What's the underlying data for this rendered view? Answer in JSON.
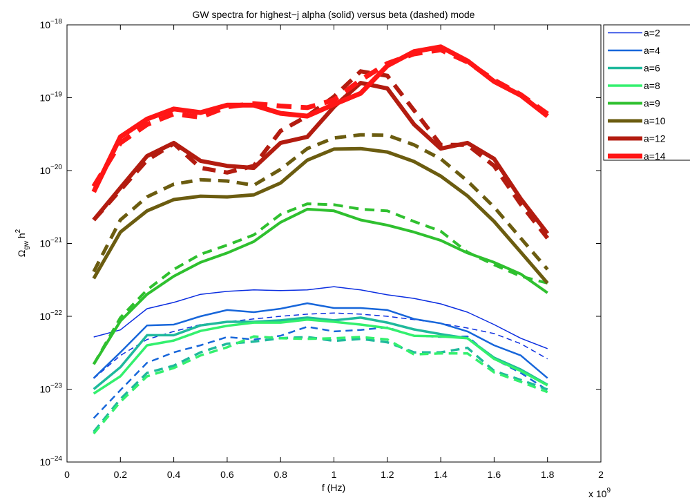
{
  "chart_data": {
    "type": "line",
    "title": "GW spectra for highest−j alpha (solid) versus beta (dashed) mode",
    "xlabel": "f (Hz)",
    "ylabel": "Ω_gw h^2",
    "x_multiplier": "x 10^9",
    "yscale": "log",
    "grid": false,
    "legend": "northeastoutside",
    "x": [
      0.1,
      0.2,
      0.3,
      0.4,
      0.5,
      0.6,
      0.7,
      0.8,
      0.9,
      1.0,
      1.1,
      1.2,
      1.3,
      1.4,
      1.5,
      1.6,
      1.7,
      1.8
    ],
    "xlim": [
      0,
      2
    ],
    "xticks": [
      0,
      0.2,
      0.4,
      0.6,
      0.8,
      1,
      1.2,
      1.4,
      1.6,
      1.8,
      2
    ],
    "ylim": [
      1e-24,
      1e-18
    ],
    "yticks": [
      {
        "value": 1e-24,
        "label": "10^−24"
      },
      {
        "value": 1e-23,
        "label": "10^−23"
      },
      {
        "value": 1e-22,
        "label": "10^−22"
      },
      {
        "value": 1e-21,
        "label": "10^−21"
      },
      {
        "value": 1e-20,
        "label": "10^−20"
      },
      {
        "value": 1e-19,
        "label": "10^−19"
      },
      {
        "value": 1e-18,
        "label": "10^−18"
      }
    ],
    "series": [
      {
        "name": "a=2",
        "color": "#0b2ee0",
        "values": [
          5.2e-23,
          6.5e-23,
          1.27e-22,
          1.55e-22,
          2e-22,
          2.2e-22,
          2.3e-22,
          2.25e-22,
          2.3e-22,
          2.55e-22,
          2.3e-22,
          1.97e-22,
          1.76e-22,
          1.48e-22,
          1.14e-22,
          7.7e-23,
          5e-23,
          3.6e-23
        ],
        "dashed_values": [
          1.4e-23,
          2.9e-23,
          4.8e-23,
          6.2e-23,
          7.7e-23,
          8.4e-23,
          9.2e-23,
          1e-22,
          1.07e-22,
          1.11e-22,
          1.07e-22,
          1e-22,
          9e-23,
          8e-23,
          6.9e-23,
          5.8e-23,
          4.2e-23,
          2.6e-23
        ]
      },
      {
        "name": "a=4",
        "color": "#1766da",
        "values": [
          1.42e-23,
          3.2e-23,
          7.5e-23,
          7.7e-23,
          1e-22,
          1.22e-22,
          1.14e-22,
          1.27e-22,
          1.51e-22,
          1.3e-22,
          1.3e-22,
          1.22e-22,
          9.2e-23,
          8e-23,
          6.2e-23,
          4e-23,
          2.9e-23,
          1.42e-23
        ],
        "dashed_values": [
          4e-24,
          9.7e-24,
          2.3e-23,
          3.2e-23,
          4e-23,
          5.2e-23,
          4.8e-23,
          5.4e-23,
          7.2e-23,
          6.2e-23,
          6.5e-23,
          7.05e-23,
          5.4e-23,
          5.2e-23,
          5.3e-23,
          2.6e-23,
          1.67e-23,
          9.7e-24
        ]
      },
      {
        "name": "a=6",
        "color": "#1fb99c",
        "values": [
          1e-23,
          2e-23,
          5.5e-23,
          5.5e-23,
          7.5e-23,
          8.4e-23,
          8.4e-23,
          8.8e-23,
          9.6e-23,
          8.8e-23,
          9.6e-23,
          8.2e-23,
          6.6e-23,
          5.7e-23,
          5e-23,
          2.7e-23,
          1.86e-23,
          1.15e-23
        ],
        "dashed_values": [
          2.6e-24,
          7.3e-24,
          1.67e-23,
          2.1e-23,
          3.2e-23,
          4.2e-23,
          4.5e-23,
          5e-23,
          5.2e-23,
          4.6e-23,
          4.9e-23,
          4.4e-23,
          3.2e-23,
          3.2e-23,
          3.7e-23,
          1.78e-23,
          1.34e-23,
          9.9e-24
        ]
      },
      {
        "name": "a=8",
        "color": "#33f06e",
        "values": [
          8.7e-24,
          1.5e-23,
          4e-23,
          4.65e-23,
          6.3e-23,
          7.4e-23,
          8.2e-23,
          8.2e-23,
          9e-23,
          8.4e-23,
          7.7e-23,
          6.9e-23,
          5.4e-23,
          5.3e-23,
          5e-23,
          2.6e-23,
          1.78e-23,
          1.13e-23
        ],
        "dashed_values": [
          2.45e-24,
          6.7e-24,
          1.5e-23,
          1.95e-23,
          2.9e-23,
          3.75e-23,
          5.3e-23,
          5e-23,
          4.9e-23,
          5e-23,
          5.2e-23,
          4.8e-23,
          3e-23,
          3.1e-23,
          3.1e-23,
          1.7e-23,
          1.26e-23,
          9.1e-24
        ]
      },
      {
        "name": "a=9",
        "color": "#2fc02f",
        "values": [
          2.2e-23,
          8.6e-23,
          2e-22,
          3.55e-22,
          5.5e-22,
          7.4e-22,
          1.06e-21,
          1.95e-21,
          2.95e-21,
          2.8e-21,
          2.1e-21,
          1.78e-21,
          1.43e-21,
          1.1e-21,
          7.4e-22,
          5.5e-22,
          3.8e-22,
          2.1e-22
        ],
        "dashed_values": [
          2.2e-23,
          9.6e-23,
          2.3e-22,
          4.4e-22,
          7.1e-22,
          9.5e-22,
          1.31e-21,
          2.5e-21,
          3.5e-21,
          3.4e-21,
          2.95e-21,
          2.8e-21,
          2e-21,
          1.47e-21,
          7.6e-22,
          5.1e-22,
          3.55e-22,
          2.85e-22
        ]
      },
      {
        "name": "a=10",
        "color": "#6b5c10",
        "values": [
          3.3e-22,
          1.43e-21,
          2.8e-21,
          4e-21,
          4.45e-21,
          4.35e-21,
          4.65e-21,
          6.75e-21,
          1.39e-20,
          1.97e-20,
          2e-20,
          1.8e-20,
          1.33e-20,
          8.4e-21,
          4.5e-21,
          2e-21,
          7.6e-22,
          2.85e-22
        ],
        "dashed_values": [
          4.1e-22,
          2.1e-21,
          4.35e-21,
          6.5e-21,
          7.5e-21,
          7.2e-21,
          6.3e-21,
          1.04e-20,
          2e-20,
          2.8e-20,
          3.1e-20,
          3.05e-20,
          2.25e-20,
          1.45e-20,
          7.2e-21,
          3.15e-21,
          1.18e-21,
          4.4e-22
        ]
      },
      {
        "name": "a=12",
        "color": "#b31c10",
        "values": [
          2.1e-21,
          5.8e-21,
          1.58e-20,
          2.4e-20,
          1.36e-20,
          1.16e-20,
          1.09e-20,
          2.4e-20,
          2.9e-20,
          7.5e-20,
          1.6e-19,
          1.34e-19,
          4.3e-20,
          2e-20,
          2.4e-20,
          1.45e-20,
          4.1e-21,
          1.37e-21
        ],
        "dashed_values": [
          2.1e-21,
          5.4e-21,
          1.39e-20,
          2.35e-20,
          1.09e-20,
          9.4e-21,
          1.16e-20,
          3.5e-20,
          5.6e-20,
          1.03e-19,
          2.3e-19,
          2e-19,
          6.7e-20,
          2.25e-20,
          2.25e-20,
          1.16e-20,
          3.45e-21,
          1.18e-21
        ]
      },
      {
        "name": "a=14",
        "color": "#ff1616",
        "values": [
          5.1e-21,
          2.9e-20,
          5.1e-20,
          7e-20,
          6.25e-20,
          7.9e-20,
          7.9e-20,
          6.1e-20,
          5.6e-20,
          8.1e-20,
          1.15e-19,
          2.75e-19,
          4.3e-19,
          5e-19,
          3.2e-19,
          1.67e-19,
          1.08e-19,
          5.6e-20
        ],
        "dashed_values": [
          6.05e-21,
          2.4e-20,
          4.3e-20,
          6e-20,
          5.4e-20,
          7.5e-20,
          8.3e-20,
          7.7e-20,
          7.3e-20,
          9.3e-20,
          1.75e-19,
          2.95e-19,
          4e-19,
          4.55e-19,
          3.1e-19,
          1.75e-19,
          1.1e-19,
          6e-20
        ]
      }
    ]
  }
}
